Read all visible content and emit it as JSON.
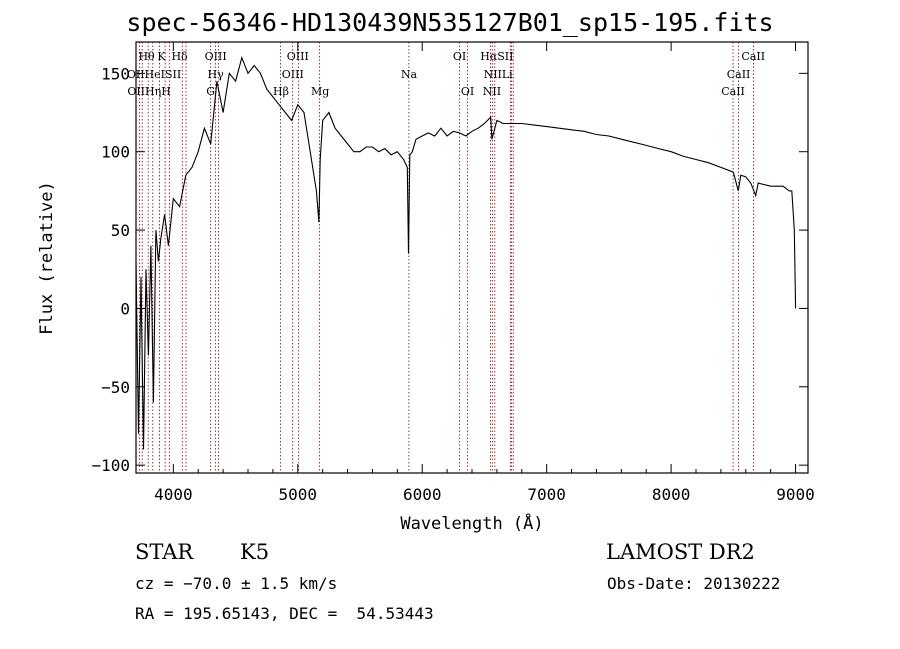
{
  "chart_data": {
    "type": "line",
    "title": "spec-56346-HD130439N535127B01_sp15-195.fits",
    "xlabel": "Wavelength (Å)",
    "ylabel": "Flux (relative)",
    "xlim": [
      3700,
      9100
    ],
    "ylim": [
      -105,
      170
    ],
    "x_ticks": [
      4000,
      5000,
      6000,
      7000,
      8000,
      9000
    ],
    "y_ticks": [
      -100,
      -50,
      0,
      50,
      100,
      150
    ],
    "x_tick_labels": [
      "4000",
      "5000",
      "6000",
      "7000",
      "8000",
      "9000"
    ],
    "y_tick_labels": [
      "−100",
      "−50",
      "0",
      "50",
      "100",
      "150"
    ],
    "grid": false,
    "series": [
      {
        "x": [
          3700,
          3720,
          3740,
          3760,
          3780,
          3800,
          3820,
          3840,
          3860,
          3880,
          3900,
          3930,
          3960,
          4000,
          4050,
          4100,
          4150,
          4200,
          4250,
          4300,
          4350,
          4400,
          4450,
          4500,
          4550,
          4600,
          4650,
          4700,
          4750,
          4800,
          4850,
          4900,
          4950,
          5000,
          5050,
          5100,
          5150,
          5170,
          5180,
          5200,
          5250,
          5300,
          5350,
          5400,
          5450,
          5500,
          5550,
          5600,
          5650,
          5700,
          5750,
          5800,
          5850,
          5880,
          5890,
          5900,
          5920,
          5950,
          6000,
          6050,
          6100,
          6150,
          6200,
          6250,
          6300,
          6350,
          6400,
          6450,
          6500,
          6550,
          6560,
          6600,
          6650,
          6700,
          6750,
          6800,
          6900,
          7000,
          7100,
          7200,
          7300,
          7400,
          7500,
          7600,
          7700,
          7800,
          7900,
          8000,
          8100,
          8200,
          8300,
          8400,
          8500,
          8540,
          8560,
          8600,
          8640,
          8680,
          8700,
          8800,
          8900,
          8950,
          8970,
          8990,
          9000
        ],
        "y": [
          30,
          -80,
          20,
          -90,
          25,
          -30,
          40,
          -60,
          50,
          30,
          45,
          60,
          40,
          70,
          65,
          85,
          90,
          100,
          115,
          105,
          145,
          125,
          150,
          145,
          160,
          150,
          155,
          150,
          140,
          135,
          130,
          125,
          120,
          130,
          125,
          100,
          75,
          55,
          95,
          120,
          125,
          115,
          110,
          105,
          100,
          100,
          103,
          103,
          100,
          102,
          98,
          100,
          95,
          90,
          35,
          98,
          100,
          108,
          110,
          112,
          110,
          115,
          110,
          113,
          112,
          110,
          113,
          115,
          118,
          122,
          108,
          120,
          118,
          118,
          118,
          118,
          117,
          116,
          115,
          114,
          113,
          111,
          110,
          108,
          106,
          104,
          102,
          100,
          97,
          95,
          93,
          90,
          87,
          75,
          85,
          84,
          80,
          72,
          80,
          78,
          78,
          75,
          75,
          50,
          0
        ]
      }
    ],
    "lines": [
      {
        "x": 3727,
        "name": "OII"
      },
      {
        "x": 3750,
        "name": "Hθ"
      },
      {
        "x": 3798,
        "name": "Hη"
      },
      {
        "x": 3835,
        "name": "Hη"
      },
      {
        "x": 3889,
        "name": "HeI"
      },
      {
        "x": 3934,
        "name": "K"
      },
      {
        "x": 3968,
        "name": "H"
      },
      {
        "x": 4072,
        "name": "SII"
      },
      {
        "x": 4102,
        "name": "Hδ"
      },
      {
        "x": 4300,
        "name": "G"
      },
      {
        "x": 4340,
        "name": "Hγ"
      },
      {
        "x": 4363,
        "name": "OIII"
      },
      {
        "x": 4861,
        "name": "Hβ"
      },
      {
        "x": 4959,
        "name": "OIII"
      },
      {
        "x": 5007,
        "name": "OIII"
      },
      {
        "x": 5175,
        "name": "Mg"
      },
      {
        "x": 5893,
        "name": "Na"
      },
      {
        "x": 6300,
        "name": "OI"
      },
      {
        "x": 6364,
        "name": "OI"
      },
      {
        "x": 6548,
        "name": "NII"
      },
      {
        "x": 6563,
        "name": "Hα"
      },
      {
        "x": 6583,
        "name": "NII"
      },
      {
        "x": 6708,
        "name": "Li"
      },
      {
        "x": 6716,
        "name": "SII"
      },
      {
        "x": 6731,
        "name": "SII"
      },
      {
        "x": 8498,
        "name": "CaII"
      },
      {
        "x": 8542,
        "name": "CaII"
      },
      {
        "x": 8662,
        "name": "CaII"
      }
    ],
    "line_labels": [
      {
        "text": "Hθ",
        "x": 3785,
        "row": 0
      },
      {
        "text": "K",
        "x": 3905,
        "row": 0
      },
      {
        "text": "Hδ",
        "x": 4050,
        "row": 0
      },
      {
        "text": "OIII",
        "x": 4340,
        "row": 0
      },
      {
        "text": "OIII",
        "x": 5000,
        "row": 0
      },
      {
        "text": "OI",
        "x": 6300,
        "row": 0
      },
      {
        "text": "HαSII",
        "x": 6600,
        "row": 0
      },
      {
        "text": "CaII",
        "x": 8660,
        "row": 0
      },
      {
        "text": "OIIHeISII",
        "x": 3845,
        "row": 1
      },
      {
        "text": "Hγ",
        "x": 4340,
        "row": 1
      },
      {
        "text": "OIII",
        "x": 4960,
        "row": 1
      },
      {
        "text": "Na",
        "x": 5893,
        "row": 1
      },
      {
        "text": "NIILi",
        "x": 6610,
        "row": 1
      },
      {
        "text": "CaII",
        "x": 8542,
        "row": 1
      },
      {
        "text": "OIIHηH",
        "x": 3805,
        "row": 2
      },
      {
        "text": "G",
        "x": 4300,
        "row": 2
      },
      {
        "text": "Hβ",
        "x": 4865,
        "row": 2
      },
      {
        "text": "Mg",
        "x": 5180,
        "row": 2
      },
      {
        "text": "OI",
        "x": 6364,
        "row": 2
      },
      {
        "text": "NII",
        "x": 6560,
        "row": 2
      },
      {
        "text": "CaII",
        "x": 8498,
        "row": 2
      }
    ],
    "colors": {
      "spectrum": "#000000",
      "line_markers": "#8b0000"
    }
  },
  "info": {
    "object_class": "STAR",
    "subclass": "K5",
    "cz": "cz = −70.0 ± 1.5 km/s",
    "coords": "RA = 195.65143, DEC =  54.53443",
    "survey": "LAMOST DR2",
    "obs_date": "Obs-Date: 20130222"
  }
}
